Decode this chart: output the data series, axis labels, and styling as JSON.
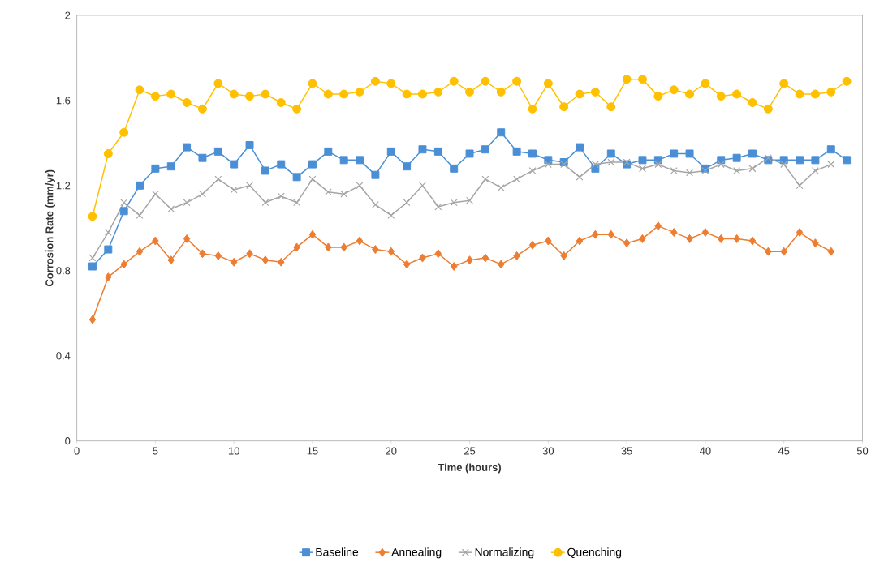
{
  "chart_data": {
    "type": "line",
    "xlabel": "Time (hours)",
    "ylabel": "Corrosion Rate (mm/yr)",
    "xlim": [
      0,
      50
    ],
    "xticks": [
      0,
      5,
      10,
      15,
      20,
      25,
      30,
      35,
      40,
      45,
      50
    ],
    "ylim": [
      0,
      2
    ],
    "yticks": [
      0,
      {
        "value": 0.4,
        "label": "0.4"
      },
      {
        "value": 0.8,
        "label": "0.8"
      },
      {
        "value": 1.2,
        "label": "1.2"
      },
      {
        "value": 1.6,
        "label": "1.6"
      },
      2
    ],
    "grid": false,
    "legend": "bottom",
    "line_style": "solid",
    "series": [
      {
        "name": "Baseline",
        "color": "#4a8fd6",
        "marker": "square",
        "x": [
          1,
          2,
          3,
          4,
          5,
          6,
          7,
          8,
          9,
          10,
          11,
          12,
          13,
          14,
          15,
          16,
          17,
          18,
          19,
          20,
          21,
          22,
          23,
          24,
          25,
          26,
          27,
          28,
          29,
          30,
          31,
          32,
          33,
          34,
          35,
          36,
          37,
          38,
          39,
          40,
          41,
          42,
          43,
          44,
          45,
          46,
          47,
          48,
          49
        ],
        "values": [
          0.82,
          0.9,
          1.08,
          1.2,
          1.28,
          1.29,
          1.38,
          1.33,
          1.36,
          1.3,
          1.39,
          1.27,
          1.3,
          1.24,
          1.3,
          1.36,
          1.32,
          1.32,
          1.25,
          1.36,
          1.29,
          1.37,
          1.36,
          1.28,
          1.35,
          1.37,
          1.45,
          1.36,
          1.35,
          1.32,
          1.31,
          1.38,
          1.28,
          1.35,
          1.3,
          1.32,
          1.32,
          1.35,
          1.35,
          1.28,
          1.32,
          1.33,
          1.35,
          1.32,
          1.32,
          1.32,
          1.32,
          1.37,
          1.32
        ]
      },
      {
        "name": "Annealing",
        "color": "#ed7d31",
        "marker": "diamond",
        "x": [
          1,
          2,
          3,
          4,
          5,
          6,
          7,
          8,
          9,
          10,
          11,
          12,
          13,
          14,
          15,
          16,
          17,
          18,
          19,
          20,
          21,
          22,
          23,
          24,
          25,
          26,
          27,
          28,
          29,
          30,
          31,
          32,
          33,
          34,
          35,
          36,
          37,
          38,
          39,
          40,
          41,
          42,
          43,
          44,
          45,
          46,
          47,
          48
        ],
        "values": [
          0.57,
          0.77,
          0.83,
          0.89,
          0.94,
          0.85,
          0.95,
          0.88,
          0.87,
          0.84,
          0.88,
          0.85,
          0.84,
          0.91,
          0.97,
          0.91,
          0.91,
          0.94,
          0.9,
          0.89,
          0.83,
          0.86,
          0.88,
          0.82,
          0.85,
          0.86,
          0.83,
          0.87,
          0.92,
          0.94,
          0.87,
          0.94,
          0.97,
          0.97,
          0.93,
          0.95,
          1.01,
          0.98,
          0.95,
          0.98,
          0.95,
          0.95,
          0.94,
          0.89,
          0.89,
          0.98,
          0.93,
          0.89
        ]
      },
      {
        "name": "Normalizing",
        "color": "#a5a5a5",
        "marker": "cross",
        "x": [
          1,
          2,
          3,
          4,
          5,
          6,
          7,
          8,
          9,
          10,
          11,
          12,
          13,
          14,
          15,
          16,
          17,
          18,
          19,
          20,
          21,
          22,
          23,
          24,
          25,
          26,
          27,
          28,
          29,
          30,
          31,
          32,
          33,
          34,
          35,
          36,
          37,
          38,
          39,
          40,
          41,
          42,
          43,
          44,
          45,
          46,
          47,
          48
        ],
        "values": [
          0.86,
          0.98,
          1.12,
          1.06,
          1.16,
          1.09,
          1.12,
          1.16,
          1.23,
          1.18,
          1.2,
          1.12,
          1.15,
          1.12,
          1.23,
          1.17,
          1.16,
          1.2,
          1.11,
          1.06,
          1.12,
          1.2,
          1.1,
          1.12,
          1.13,
          1.23,
          1.19,
          1.23,
          1.27,
          1.3,
          1.3,
          1.24,
          1.3,
          1.31,
          1.31,
          1.28,
          1.3,
          1.27,
          1.26,
          1.27,
          1.3,
          1.27,
          1.28,
          1.33,
          1.3,
          1.2,
          1.27,
          1.3
        ]
      },
      {
        "name": "Quenching",
        "color": "#ffc000",
        "marker": "circle",
        "x": [
          1,
          2,
          3,
          4,
          5,
          6,
          7,
          8,
          9,
          10,
          11,
          12,
          13,
          14,
          15,
          16,
          17,
          18,
          19,
          20,
          21,
          22,
          23,
          24,
          25,
          26,
          27,
          28,
          29,
          30,
          31,
          32,
          33,
          34,
          35,
          36,
          37,
          38,
          39,
          40,
          41,
          42,
          43,
          44,
          45,
          46,
          47,
          48,
          49
        ],
        "values": [
          1.055,
          1.35,
          1.45,
          1.65,
          1.62,
          1.63,
          1.59,
          1.56,
          1.68,
          1.63,
          1.62,
          1.63,
          1.59,
          1.56,
          1.68,
          1.63,
          1.63,
          1.64,
          1.69,
          1.68,
          1.63,
          1.63,
          1.64,
          1.69,
          1.64,
          1.69,
          1.64,
          1.69,
          1.56,
          1.68,
          1.57,
          1.63,
          1.64,
          1.57,
          1.7,
          1.7,
          1.62,
          1.65,
          1.63,
          1.68,
          1.62,
          1.63,
          1.59,
          1.56,
          1.68,
          1.63,
          1.63,
          1.64,
          1.69
        ]
      }
    ]
  }
}
